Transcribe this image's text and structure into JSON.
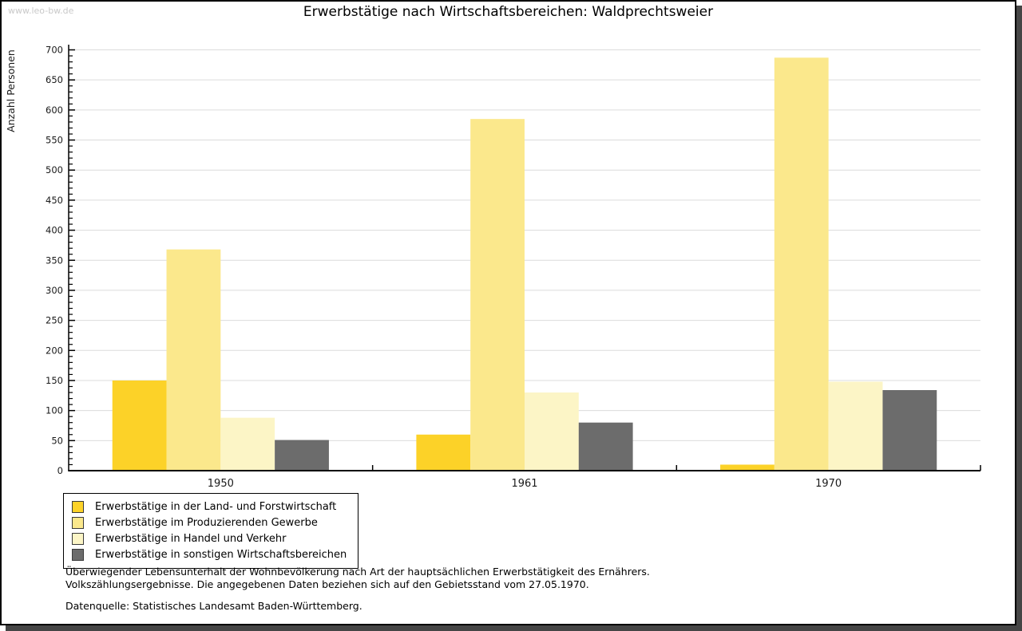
{
  "watermark": "www.leo-bw.de",
  "title": "Erwerbstätige nach Wirtschaftsbereichen: Waldprechtsweier",
  "chart_data": {
    "type": "bar",
    "title": "Erwerbstätige nach Wirtschaftsbereichen: Waldprechtsweier",
    "xlabel": "",
    "ylabel": "Anzahl Personen",
    "categories": [
      "1950",
      "1961",
      "1970"
    ],
    "series": [
      {
        "name": "Erwerbstätige in der Land- und Forstwirtschaft",
        "color": "#FCD228",
        "values": [
          150,
          60,
          10
        ]
      },
      {
        "name": "Erwerbstätige im Produzierenden Gewerbe",
        "color": "#FBE88C",
        "values": [
          368,
          585,
          687
        ]
      },
      {
        "name": "Erwerbstätige in Handel und Verkehr",
        "color": "#FCF5C6",
        "values": [
          88,
          130,
          148
        ]
      },
      {
        "name": "Erwerbstätige in sonstigen Wirtschaftsbereichen",
        "color": "#6C6C6C",
        "values": [
          51,
          80,
          134
        ]
      }
    ],
    "ylim": [
      0,
      700
    ],
    "ytick_step": 50,
    "minor_tick_step": 10,
    "grid": true,
    "gridline_color": "#dcdcdc",
    "axis_color": "#000000",
    "legend_position": "bottom-left"
  },
  "footnotes": {
    "line1": "Überwiegender Lebensunterhalt der Wohnbevölkerung nach Art der hauptsächlichen Erwerbstätigkeit des Ernährers.",
    "line2": "Volkszählungsergebnisse. Die angegebenen Daten beziehen sich auf den Gebietsstand vom 27.05.1970.",
    "source": "Datenquelle: Statistisches Landesamt Baden-Württemberg."
  }
}
